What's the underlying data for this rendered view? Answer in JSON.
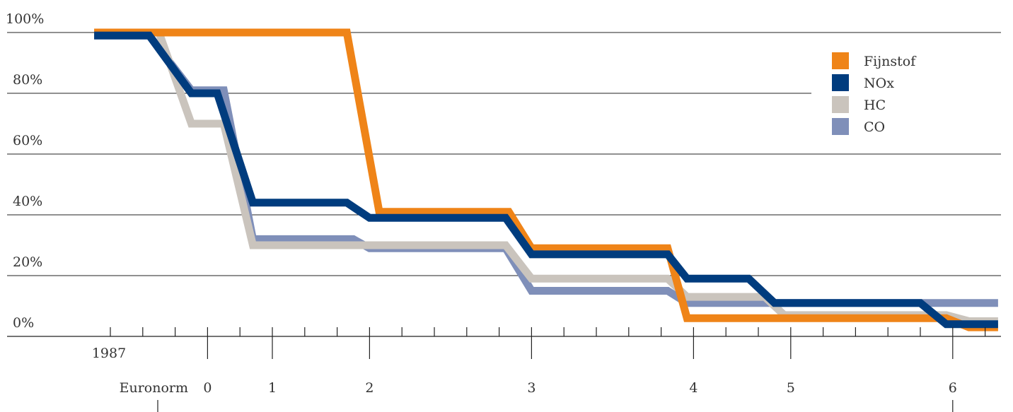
{
  "chart_data": {
    "type": "line",
    "title": "",
    "xlabel": "",
    "ylabel": "",
    "x_start_label": "1987",
    "euronorm_label": "Euronorm",
    "euronorm_levels": [
      "0",
      "1",
      "2",
      "3",
      "4",
      "5",
      "6"
    ],
    "euronorm_x": [
      3,
      5,
      8,
      13,
      18,
      21,
      26
    ],
    "ylim": [
      0,
      100
    ],
    "y_ticks": [
      0,
      20,
      40,
      60,
      80,
      100
    ],
    "y_tick_labels": [
      "0%",
      "20%",
      "40%",
      "60%",
      "80%",
      "100%"
    ],
    "legend_position": "top-right",
    "series": [
      {
        "name": "CO",
        "color": "#7f8fb9",
        "points": [
          [
            -0.5,
            99
          ],
          [
            1.2,
            99
          ],
          [
            2.5,
            81
          ],
          [
            3.5,
            81
          ],
          [
            4.4,
            32
          ],
          [
            7.5,
            32
          ],
          [
            8,
            29
          ],
          [
            12.2,
            29
          ],
          [
            13,
            15
          ],
          [
            17.2,
            15
          ],
          [
            17.8,
            11
          ],
          [
            20.2,
            11
          ],
          [
            20.8,
            11
          ],
          [
            25.8,
            11
          ],
          [
            27.4,
            11
          ]
        ]
      },
      {
        "name": "HC",
        "color": "#cac4bd",
        "points": [
          [
            -0.5,
            100
          ],
          [
            1.5,
            100
          ],
          [
            2.5,
            70
          ],
          [
            3.5,
            70
          ],
          [
            4.4,
            30
          ],
          [
            12.2,
            30
          ],
          [
            13,
            19
          ],
          [
            17.2,
            19
          ],
          [
            17.8,
            13
          ],
          [
            20.2,
            13
          ],
          [
            20.8,
            7
          ],
          [
            25.8,
            7
          ],
          [
            26.5,
            5
          ],
          [
            27.4,
            5
          ]
        ]
      },
      {
        "name": "Fijnstof",
        "color": "#ef8418",
        "points": [
          [
            -0.5,
            100
          ],
          [
            7.3,
            100
          ],
          [
            8.3,
            41
          ],
          [
            12.3,
            41
          ],
          [
            13,
            29
          ],
          [
            17.2,
            29
          ],
          [
            17.8,
            6
          ],
          [
            20.2,
            6
          ],
          [
            20.8,
            6
          ],
          [
            25.8,
            6
          ],
          [
            26.5,
            3
          ],
          [
            27.4,
            3
          ]
        ]
      },
      {
        "name": "NOx",
        "color": "#003c7e",
        "points": [
          [
            -0.5,
            99
          ],
          [
            1.2,
            99
          ],
          [
            2.5,
            80
          ],
          [
            3.3,
            80
          ],
          [
            4.4,
            44
          ],
          [
            7.3,
            44
          ],
          [
            8,
            39
          ],
          [
            12.2,
            39
          ],
          [
            13,
            27
          ],
          [
            17.2,
            27
          ],
          [
            17.8,
            19
          ],
          [
            19.7,
            19
          ],
          [
            20.5,
            11
          ],
          [
            25,
            11
          ],
          [
            25.8,
            4
          ],
          [
            27.4,
            4
          ]
        ]
      }
    ],
    "legend_order": [
      "Fijnstof",
      "NOx",
      "HC",
      "CO"
    ]
  }
}
